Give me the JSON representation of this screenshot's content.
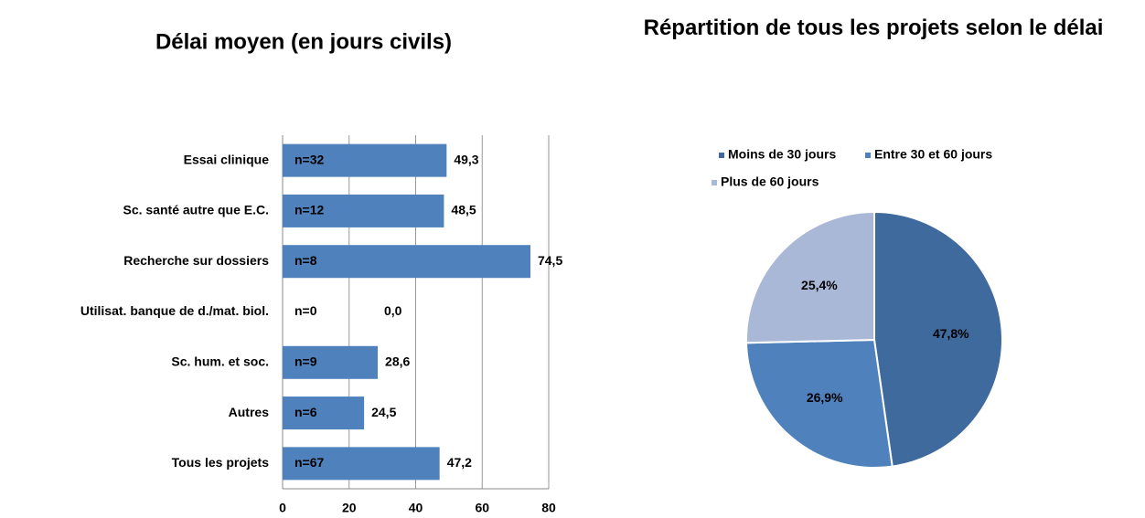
{
  "chart_data": [
    {
      "type": "bar",
      "orientation": "horizontal",
      "title": "Délai moyen (en jours civils)",
      "categories": [
        "Essai clinique",
        "Sc. santé autre que E.C.",
        "Recherche sur dossiers",
        "Utilisat. banque de d./mat. biol.",
        "Sc. hum. et soc.",
        "Autres",
        "Tous les projets"
      ],
      "values": [
        49.3,
        48.5,
        74.5,
        0.0,
        28.6,
        24.5,
        47.2
      ],
      "value_labels": [
        "49,3",
        "48,5",
        "74,5",
        "0,0",
        "28,6",
        "24,5",
        "47,2"
      ],
      "annotations": [
        "n=32",
        "n=12",
        "n=8",
        "n=0",
        "n=9",
        "n=6",
        "n=67"
      ],
      "color": "#4f81bd",
      "xlim": [
        0,
        80
      ],
      "xticks": [
        0,
        20,
        40,
        60,
        80
      ],
      "grid": true
    },
    {
      "type": "pie",
      "title": "Répartition de tous les projets selon le délai",
      "categories": [
        "Moins de 30 jours",
        "Entre 30 et 60 jours",
        "Plus de 60 jours"
      ],
      "values": [
        47.8,
        26.9,
        25.4
      ],
      "value_labels": [
        "47,8%",
        "26,9%",
        "25,4%"
      ],
      "colors": [
        "#3f6a9e",
        "#4f81bd",
        "#a9b8d6"
      ],
      "legend": "top"
    }
  ]
}
